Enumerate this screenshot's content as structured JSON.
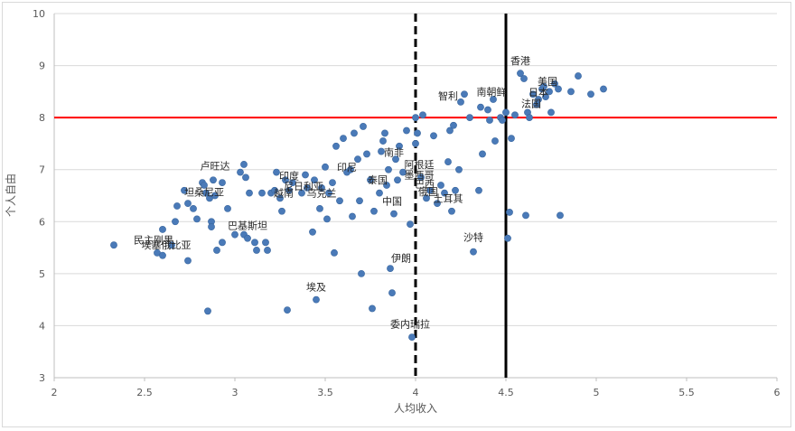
{
  "chart_data": {
    "type": "scatter",
    "xlabel": "人均收入",
    "ylabel": "个人自由",
    "xlim": [
      2,
      6
    ],
    "ylim": [
      3,
      10
    ],
    "x_ticks": [
      "2",
      "2.5",
      "3",
      "3.5",
      "4",
      "4.5",
      "5",
      "5.5",
      "6"
    ],
    "y_ticks": [
      "3",
      "4",
      "5",
      "6",
      "7",
      "8",
      "9",
      "10"
    ],
    "grid": "horizontal",
    "reference_lines": [
      {
        "orientation": "horizontal",
        "value": 8,
        "style": "solid",
        "color": "#ff0000"
      },
      {
        "orientation": "vertical",
        "value": 4,
        "style": "dashed",
        "color": "#000000"
      },
      {
        "orientation": "vertical",
        "value": 4.5,
        "style": "solid",
        "color": "#000000"
      }
    ],
    "marker_color": "#4a7ab8",
    "points": [
      [
        2.33,
        5.55
      ],
      [
        2.57,
        5.4
      ],
      [
        2.6,
        5.35
      ],
      [
        2.6,
        5.85
      ],
      [
        2.65,
        5.55
      ],
      [
        2.67,
        6.0
      ],
      [
        2.68,
        6.3
      ],
      [
        2.72,
        6.6
      ],
      [
        2.74,
        6.35
      ],
      [
        2.74,
        5.25
      ],
      [
        2.77,
        6.25
      ],
      [
        2.79,
        6.05
      ],
      [
        2.82,
        6.75
      ],
      [
        2.83,
        6.7
      ],
      [
        2.84,
        6.55
      ],
      [
        2.85,
        4.28
      ],
      [
        2.86,
        6.45
      ],
      [
        2.87,
        6.0
      ],
      [
        2.87,
        5.9
      ],
      [
        2.88,
        6.8
      ],
      [
        2.89,
        6.5
      ],
      [
        2.9,
        5.45
      ],
      [
        2.93,
        6.75
      ],
      [
        2.93,
        5.6
      ],
      [
        2.96,
        6.25
      ],
      [
        3.0,
        5.75
      ],
      [
        3.03,
        6.95
      ],
      [
        3.05,
        7.1
      ],
      [
        3.05,
        5.75
      ],
      [
        3.06,
        6.85
      ],
      [
        3.07,
        5.68
      ],
      [
        3.08,
        6.55
      ],
      [
        3.11,
        5.6
      ],
      [
        3.12,
        5.45
      ],
      [
        3.15,
        6.55
      ],
      [
        3.17,
        5.6
      ],
      [
        3.18,
        5.45
      ],
      [
        3.2,
        6.55
      ],
      [
        3.22,
        6.6
      ],
      [
        3.23,
        6.95
      ],
      [
        3.25,
        6.45
      ],
      [
        3.26,
        6.2
      ],
      [
        3.28,
        6.8
      ],
      [
        3.29,
        4.3
      ],
      [
        3.3,
        6.6
      ],
      [
        3.32,
        6.75
      ],
      [
        3.37,
        6.55
      ],
      [
        3.39,
        6.9
      ],
      [
        3.4,
        6.65
      ],
      [
        3.43,
        5.8
      ],
      [
        3.44,
        6.8
      ],
      [
        3.45,
        4.5
      ],
      [
        3.47,
        6.25
      ],
      [
        3.48,
        6.65
      ],
      [
        3.5,
        7.05
      ],
      [
        3.51,
        6.05
      ],
      [
        3.52,
        6.55
      ],
      [
        3.54,
        6.75
      ],
      [
        3.55,
        5.4
      ],
      [
        3.56,
        7.45
      ],
      [
        3.58,
        6.4
      ],
      [
        3.6,
        7.6
      ],
      [
        3.62,
        6.95
      ],
      [
        3.64,
        7.0
      ],
      [
        3.65,
        6.1
      ],
      [
        3.66,
        7.7
      ],
      [
        3.68,
        7.2
      ],
      [
        3.69,
        6.4
      ],
      [
        3.7,
        5.0
      ],
      [
        3.71,
        7.83
      ],
      [
        3.73,
        7.3
      ],
      [
        3.75,
        6.8
      ],
      [
        3.76,
        4.33
      ],
      [
        3.77,
        6.2
      ],
      [
        3.8,
        6.55
      ],
      [
        3.81,
        7.35
      ],
      [
        3.82,
        7.55
      ],
      [
        3.83,
        7.7
      ],
      [
        3.84,
        6.7
      ],
      [
        3.85,
        7.0
      ],
      [
        3.86,
        5.1
      ],
      [
        3.87,
        4.63
      ],
      [
        3.88,
        6.15
      ],
      [
        3.89,
        7.2
      ],
      [
        3.9,
        6.8
      ],
      [
        3.91,
        7.45
      ],
      [
        3.93,
        6.95
      ],
      [
        3.95,
        7.75
      ],
      [
        3.97,
        5.95
      ],
      [
        3.98,
        3.78
      ],
      [
        4.0,
        7.5
      ],
      [
        4.0,
        8.0
      ],
      [
        4.01,
        7.7
      ],
      [
        4.03,
        6.85
      ],
      [
        4.04,
        8.05
      ],
      [
        4.06,
        6.45
      ],
      [
        4.08,
        6.6
      ],
      [
        4.1,
        7.65
      ],
      [
        4.12,
        6.35
      ],
      [
        4.14,
        6.7
      ],
      [
        4.16,
        6.55
      ],
      [
        4.18,
        7.15
      ],
      [
        4.19,
        7.75
      ],
      [
        4.2,
        6.2
      ],
      [
        4.21,
        7.85
      ],
      [
        4.22,
        6.6
      ],
      [
        4.24,
        7.0
      ],
      [
        4.25,
        8.3
      ],
      [
        4.27,
        8.45
      ],
      [
        4.3,
        8.0
      ],
      [
        4.32,
        5.42
      ],
      [
        4.35,
        6.6
      ],
      [
        4.36,
        8.2
      ],
      [
        4.37,
        7.3
      ],
      [
        4.4,
        8.15
      ],
      [
        4.41,
        7.95
      ],
      [
        4.43,
        8.35
      ],
      [
        4.44,
        7.55
      ],
      [
        4.47,
        8.0
      ],
      [
        4.48,
        7.95
      ],
      [
        4.5,
        8.1
      ],
      [
        4.51,
        5.68
      ],
      [
        4.52,
        6.18
      ],
      [
        4.53,
        7.6
      ],
      [
        4.55,
        8.05
      ],
      [
        4.58,
        8.85
      ],
      [
        4.6,
        8.75
      ],
      [
        4.61,
        6.12
      ],
      [
        4.62,
        8.1
      ],
      [
        4.63,
        8.0
      ],
      [
        4.65,
        8.45
      ],
      [
        4.67,
        8.25
      ],
      [
        4.68,
        8.35
      ],
      [
        4.7,
        8.55
      ],
      [
        4.71,
        8.6
      ],
      [
        4.72,
        8.4
      ],
      [
        4.74,
        8.5
      ],
      [
        4.75,
        8.1
      ],
      [
        4.77,
        8.65
      ],
      [
        4.79,
        8.55
      ],
      [
        4.8,
        6.12
      ],
      [
        4.86,
        8.5
      ],
      [
        4.9,
        8.8
      ],
      [
        4.97,
        8.45
      ],
      [
        5.04,
        8.55
      ]
    ],
    "annotations": [
      {
        "text": "香港",
        "x": 4.58,
        "y": 9.1
      },
      {
        "text": "美国",
        "x": 4.73,
        "y": 8.7
      },
      {
        "text": "日本",
        "x": 4.68,
        "y": 8.49
      },
      {
        "text": "法国",
        "x": 4.64,
        "y": 8.27
      },
      {
        "text": "南朝鲜",
        "x": 4.42,
        "y": 8.5
      },
      {
        "text": "智利",
        "x": 4.18,
        "y": 8.42
      },
      {
        "text": "南非",
        "x": 3.88,
        "y": 7.33
      },
      {
        "text": "阿根廷",
        "x": 4.02,
        "y": 7.1
      },
      {
        "text": "墨西哥",
        "x": 4.02,
        "y": 6.9
      },
      {
        "text": "巴西",
        "x": 4.05,
        "y": 6.73
      },
      {
        "text": "俄国",
        "x": 4.07,
        "y": 6.58
      },
      {
        "text": "土耳其",
        "x": 4.18,
        "y": 6.45
      },
      {
        "text": "中国",
        "x": 3.87,
        "y": 6.4
      },
      {
        "text": "泰国",
        "x": 3.79,
        "y": 6.8
      },
      {
        "text": "印尼",
        "x": 3.62,
        "y": 7.05
      },
      {
        "text": "卢旺达",
        "x": 2.89,
        "y": 7.07
      },
      {
        "text": "印度",
        "x": 3.3,
        "y": 6.88
      },
      {
        "text": "尼日利亚",
        "x": 3.38,
        "y": 6.68
      },
      {
        "text": "越南",
        "x": 3.27,
        "y": 6.55
      },
      {
        "text": "乌克兰",
        "x": 3.48,
        "y": 6.55
      },
      {
        "text": "坦桑尼亚",
        "x": 2.83,
        "y": 6.57
      },
      {
        "text": "巴基斯坦",
        "x": 3.07,
        "y": 5.93
      },
      {
        "text": "民主刚果",
        "x": 2.55,
        "y": 5.65
      },
      {
        "text": "埃塞俄比亚",
        "x": 2.62,
        "y": 5.55
      },
      {
        "text": "沙特",
        "x": 4.32,
        "y": 5.7
      },
      {
        "text": "伊朗",
        "x": 3.92,
        "y": 5.3
      },
      {
        "text": "埃及",
        "x": 3.45,
        "y": 4.75
      },
      {
        "text": "委内瑞拉",
        "x": 3.97,
        "y": 4.03
      }
    ]
  }
}
